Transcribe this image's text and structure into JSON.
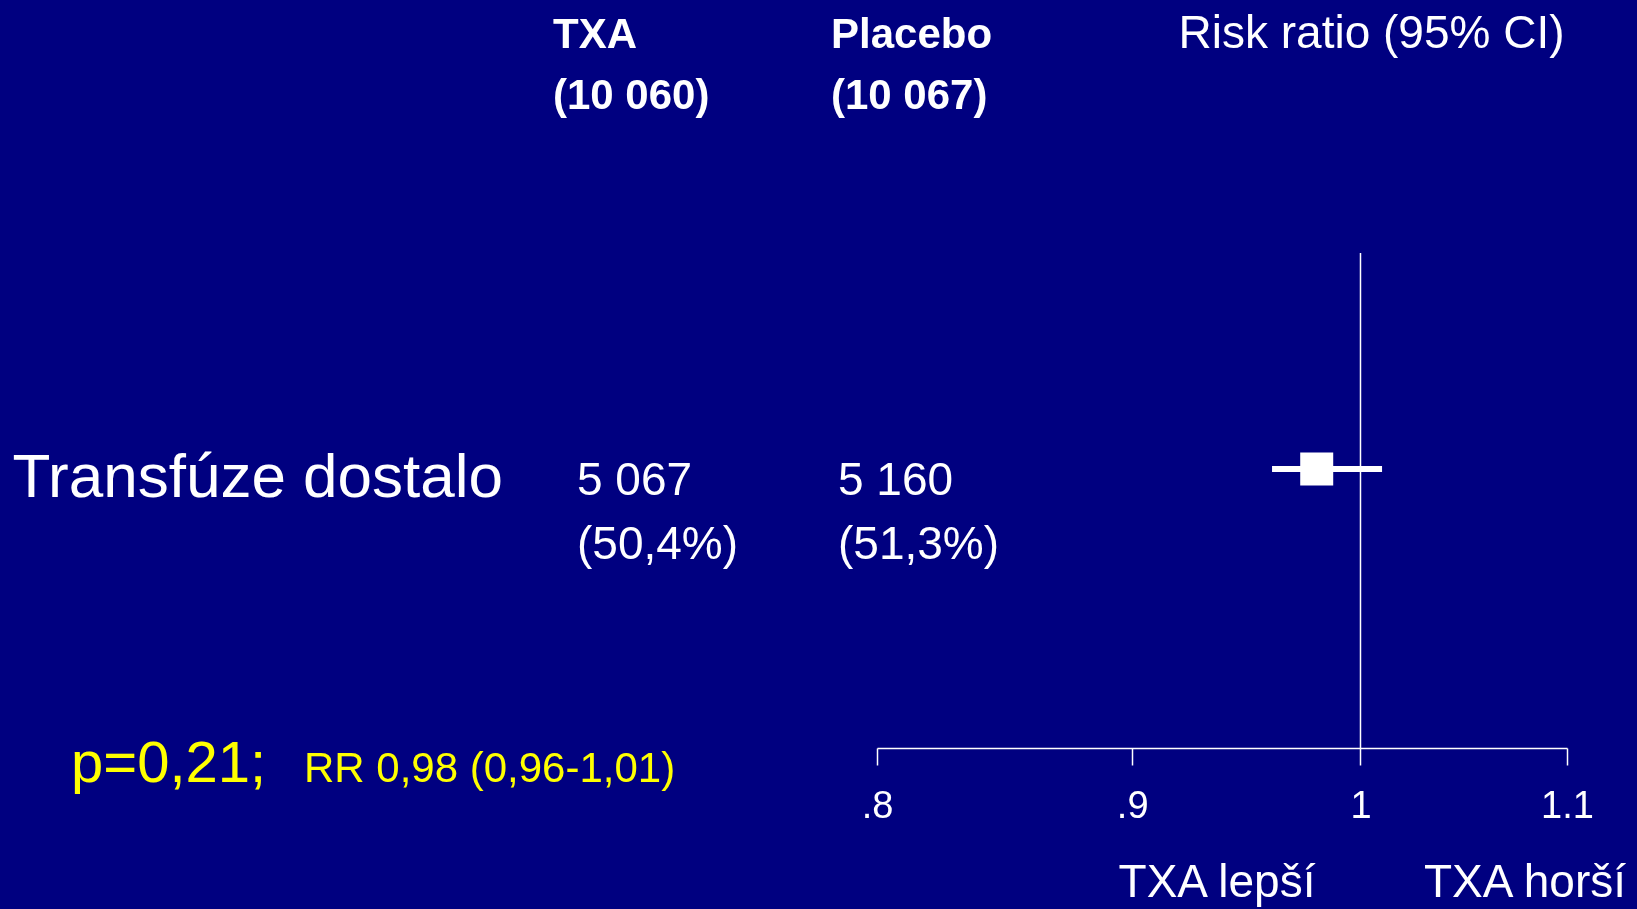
{
  "chart_data": {
    "type": "scatter",
    "orientation": "horizontal",
    "categories": [
      "Transfúze dostalo"
    ],
    "values": [
      0.98
    ],
    "errors": [
      [
        0.96,
        1.01
      ]
    ],
    "color": "#ffffff",
    "marker": "square",
    "xlim": [
      0.8,
      1.1
    ],
    "xticks": [
      {
        "value": 0.8,
        "label": ".8"
      },
      {
        "value": 0.9,
        "label": ".9"
      },
      1,
      1.1
    ],
    "log": "x",
    "xlabel": "Risk ratio (95% CI)",
    "ref_lines": [
      {
        "axis": "x",
        "value": 1,
        "color": "#ffffff"
      }
    ],
    "annotations": [
      "TXA",
      "(10 060)",
      "Placebo",
      "(10 067)",
      "5 067",
      "(50,4%)",
      "5 160",
      "(51,3%)",
      "p=0,21;",
      "RR 0,98 (0,96-1,01)",
      "TXA lepší",
      "TXA horší"
    ]
  }
}
